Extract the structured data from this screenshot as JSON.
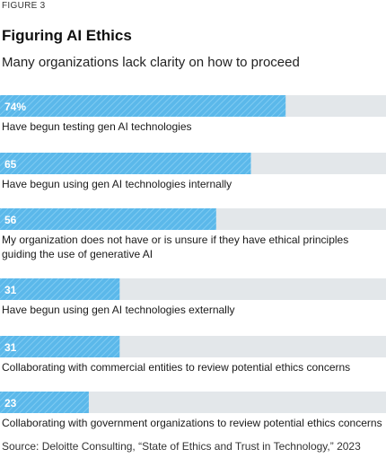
{
  "figure_label": "FIGURE 3",
  "title": "Figuring AI Ethics",
  "subtitle": "Many organizations lack clarity on how to proceed",
  "source": "Source: Deloitte Consulting, “State of Ethics and Trust in Technology,” 2023",
  "colors": {
    "bar": "#5BB8EA",
    "track": "#E3E7EA",
    "hatch": "#7FCBF2",
    "value_text": "#ffffff",
    "label_text": "#1a1a1a"
  },
  "chart_data": {
    "type": "bar",
    "orientation": "horizontal",
    "xlim": [
      0,
      100
    ],
    "categories": [
      "Have begun testing gen AI technologies",
      "Have begun using gen AI technologies internally",
      "My organization does not have or is unsure if they have ethical principles guiding the use of generative AI",
      "Have begun using gen AI technologies externally",
      "Collaborating with commercial entities to review potential ethics concerns",
      "Collaborating with government organizations to review potential ethics concerns"
    ],
    "category_lines": [
      [
        "Have begun testing gen AI technologies"
      ],
      [
        "Have begun using gen AI technologies internally"
      ],
      [
        "My organization does not have or is unsure if they have ethical principles",
        "guiding the use of generative AI"
      ],
      [
        "Have begun using gen AI technologies externally"
      ],
      [
        "Collaborating with commercial entities to review potential ethics concerns"
      ],
      [
        "Collaborating with government organizations to review potential ethics concerns"
      ]
    ],
    "values": [
      74,
      65,
      56,
      31,
      31,
      23
    ],
    "value_labels": [
      "74%",
      "65",
      "56",
      "31",
      "31",
      "23"
    ]
  }
}
